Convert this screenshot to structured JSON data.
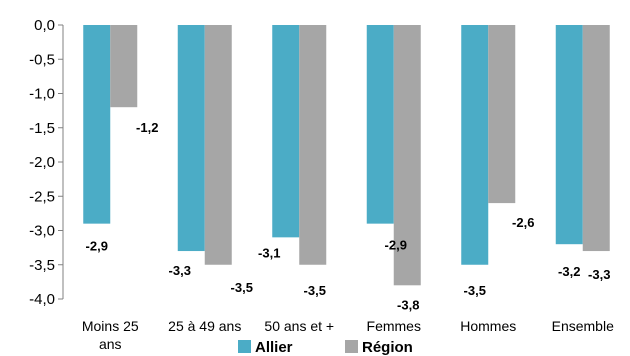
{
  "chart_data": {
    "type": "bar",
    "categories": [
      [
        "Moins 25",
        "ans"
      ],
      [
        "25 à 49 ans"
      ],
      [
        "50 ans et +"
      ],
      [
        "Femmes"
      ],
      [
        "Hommes"
      ],
      [
        "Ensemble"
      ]
    ],
    "series": [
      {
        "name": "Allier",
        "color": "#4BACC6",
        "values": [
          -2.9,
          -3.3,
          -3.1,
          -2.9,
          -3.5,
          -3.2
        ],
        "labels": [
          "-2,9",
          "-3,3",
          "-3,1",
          "-2,9",
          "-3,5",
          "-3,2"
        ]
      },
      {
        "name": "Région",
        "color": "#A6A6A6",
        "values": [
          -1.2,
          -3.5,
          -3.5,
          -3.8,
          -2.6,
          -3.3
        ],
        "labels": [
          "-1,2",
          "-3,5",
          "-3,5",
          "-3,8",
          "-2,6",
          "-3,3"
        ]
      }
    ],
    "ylim": [
      -4.0,
      0.0
    ],
    "yticks": [
      0.0,
      -0.5,
      -1.0,
      -1.5,
      -2.0,
      -2.5,
      -3.0,
      -3.5,
      -4.0
    ],
    "ytick_labels": [
      "0,0",
      "-0,5",
      "-1,0",
      "-1,5",
      "-2,0",
      "-2,5",
      "-3,0",
      "-3,5",
      "-4,0"
    ],
    "legend": {
      "position": "bottom",
      "entries": [
        "Allier",
        "Région"
      ]
    },
    "grid": false,
    "title": "",
    "xlabel": "",
    "ylabel": ""
  }
}
